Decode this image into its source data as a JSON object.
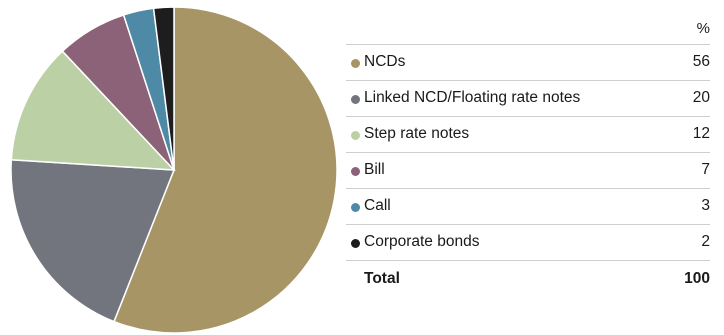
{
  "chart_data": {
    "type": "pie",
    "unit_label": "%",
    "slices": [
      {
        "label": "NCDs",
        "value": 56,
        "color": "#a89566"
      },
      {
        "label": "Linked NCD/Floating rate notes",
        "value": 20,
        "color": "#72757e"
      },
      {
        "label": "Step rate notes",
        "value": 12,
        "color": "#bcd0a6"
      },
      {
        "label": "Bill",
        "value": 7,
        "color": "#8c6279"
      },
      {
        "label": "Call",
        "value": 3,
        "color": "#4e8aa5"
      },
      {
        "label": "Corporate bonds",
        "value": 2,
        "color": "#1d1d1d"
      }
    ],
    "total": {
      "label": "Total",
      "value": "100"
    }
  }
}
